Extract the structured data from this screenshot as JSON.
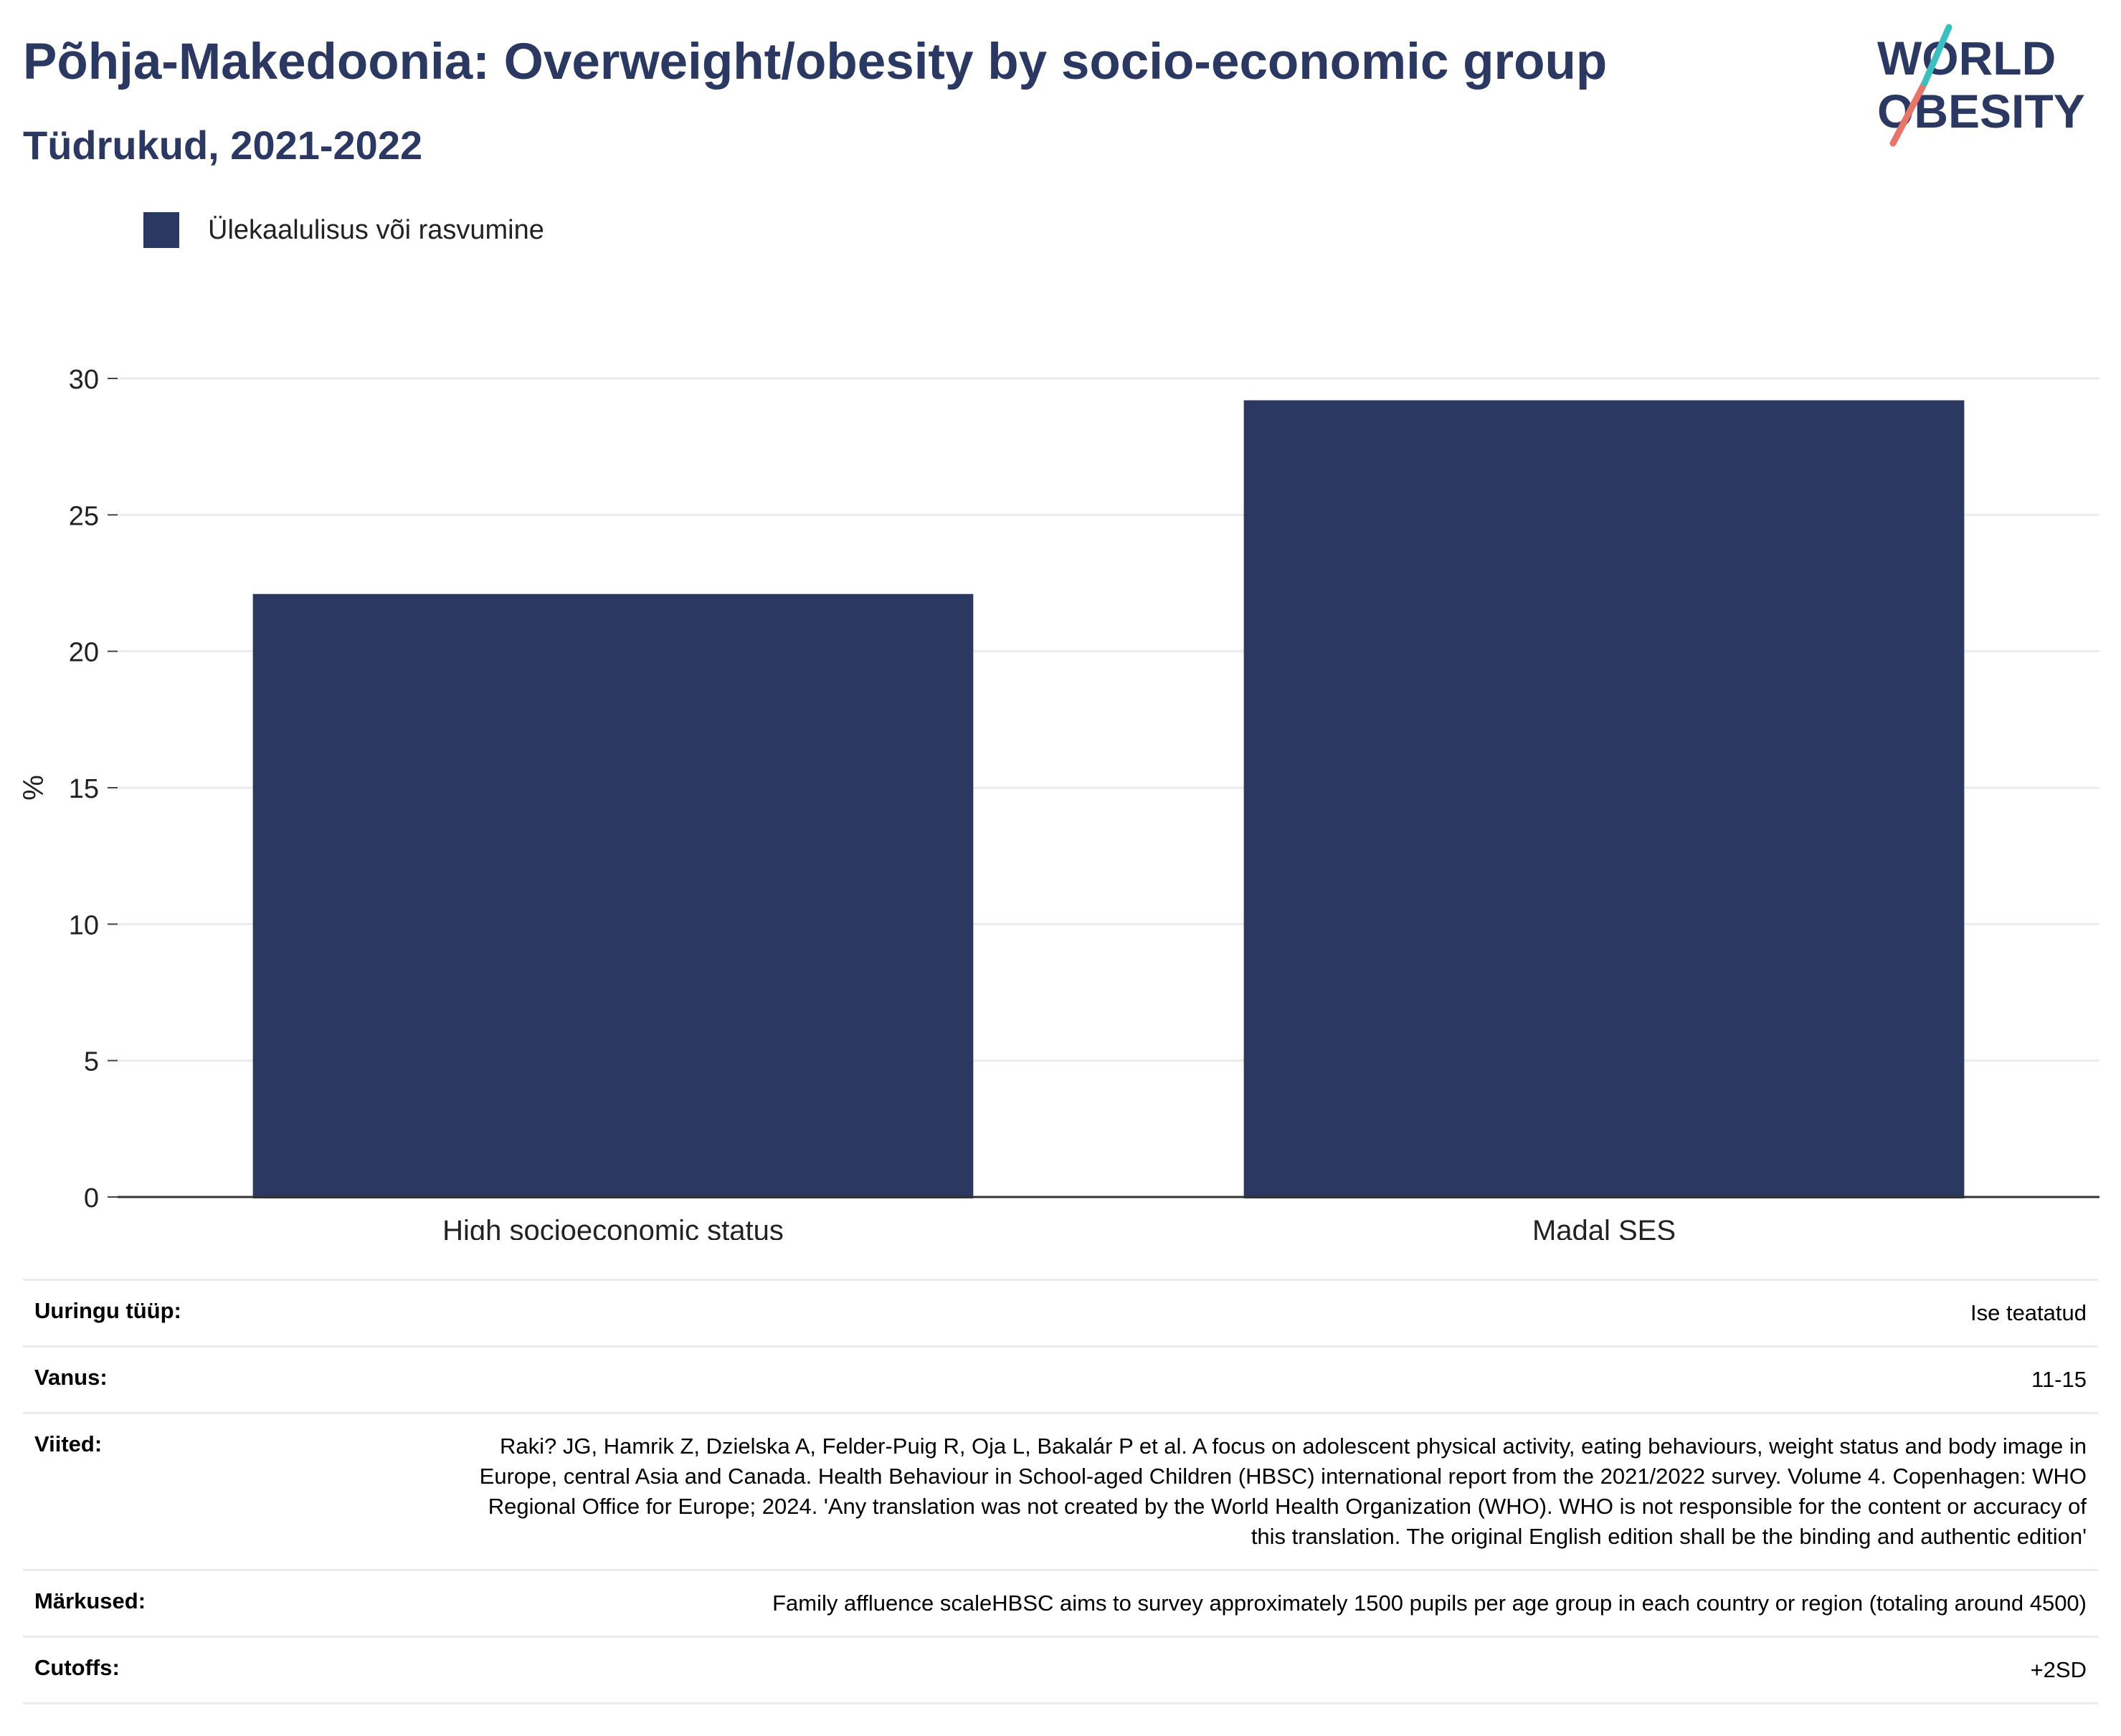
{
  "title": "Põhja-Makedoonia: Overweight/obesity by socio-economic group",
  "subtitle": "Tüdrukud, 2021-2022",
  "logo": {
    "line1": "WORLD",
    "line2": "OBESITY"
  },
  "colors": {
    "bar": "#2b3862",
    "title": "#2b3862",
    "logo_teal": "#3bbfbf",
    "logo_coral": "#e8756a"
  },
  "legend": {
    "label": "Ülekaalulisus või rasvumine"
  },
  "chart_data": {
    "type": "bar",
    "categories": [
      "High socioeconomic status",
      "Madal SES"
    ],
    "series": [
      {
        "name": "Ülekaalulisus või rasvumine",
        "values": [
          22.1,
          29.2
        ]
      }
    ],
    "ylabel": "%",
    "ylim": [
      0,
      30
    ],
    "yticks": [
      0,
      5,
      10,
      15,
      20,
      25,
      30
    ],
    "grid": true,
    "legend_position": "top-left"
  },
  "info": [
    {
      "key": "Uuringu tüüp:",
      "value": "Ise teatatud"
    },
    {
      "key": "Vanus:",
      "value": "11-15"
    },
    {
      "key": "Viited:",
      "value": "Raki? JG, Hamrik Z, Dzielska A, Felder-Puig R, Oja L, Bakalár P et al. A focus on adolescent physical activity, eating behaviours, weight status and body image in Europe, central Asia and Canada. Health Behaviour in School-aged Children (HBSC) international report from the 2021/2022 survey. Volume 4. Copenhagen: WHO Regional Office for Europe; 2024. 'Any translation was not created by the World Health Organization (WHO). WHO is not responsible for the content or accuracy of this translation. The original English edition shall be the binding and authentic edition'"
    },
    {
      "key": "Märkused:",
      "value": "Family affluence scaleHBSC aims to survey approximately 1500 pupils per age group in each country or region (totaling around 4500)"
    },
    {
      "key": "Cutoffs:",
      "value": "+2SD"
    }
  ]
}
